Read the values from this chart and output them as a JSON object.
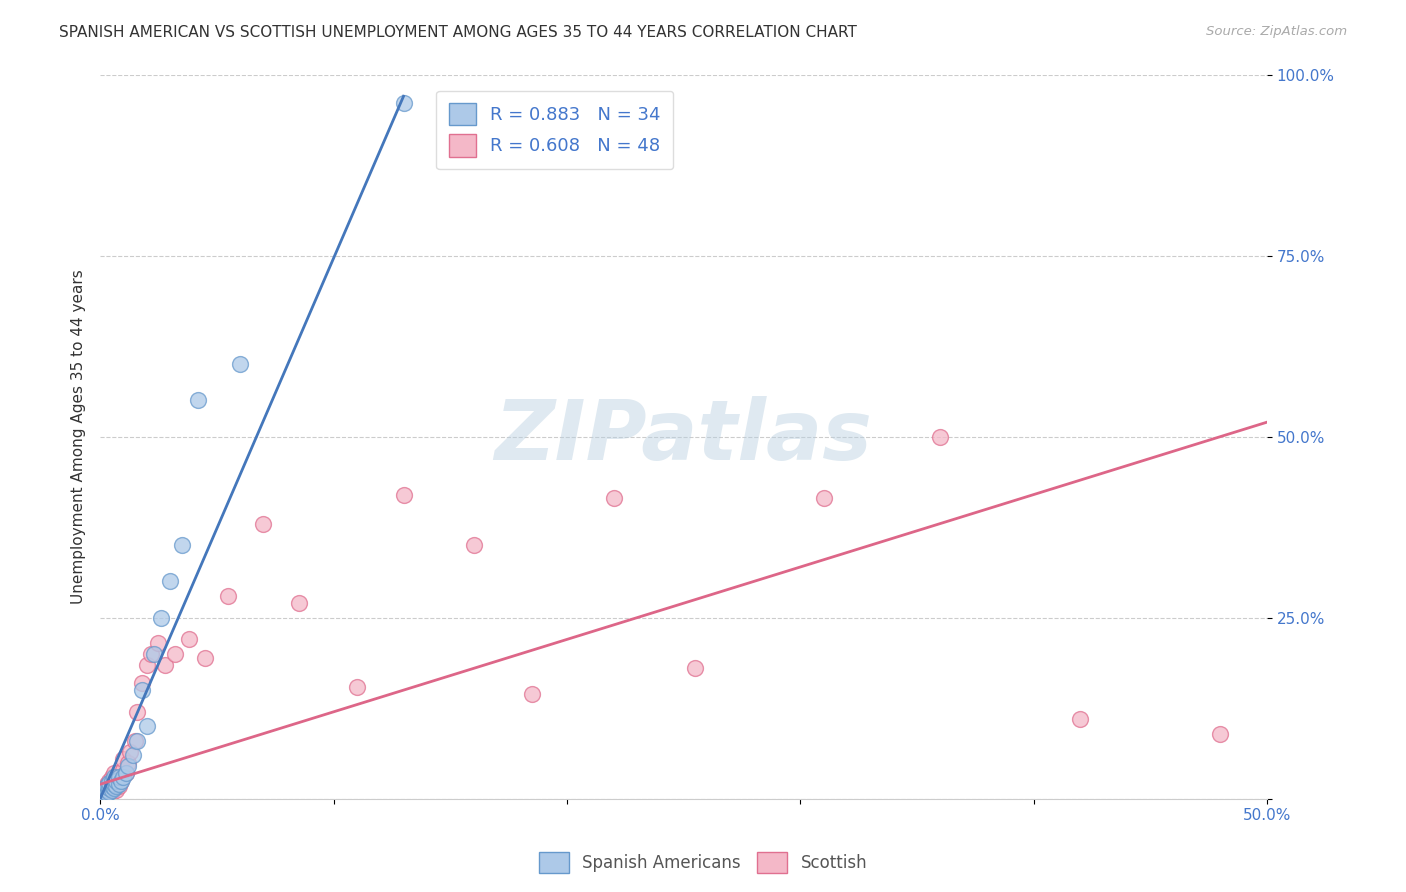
{
  "title": "SPANISH AMERICAN VS SCOTTISH UNEMPLOYMENT AMONG AGES 35 TO 44 YEARS CORRELATION CHART",
  "source": "Source: ZipAtlas.com",
  "ylabel": "Unemployment Among Ages 35 to 44 years",
  "xlim": [
    0,
    0.5
  ],
  "ylim": [
    0,
    1.0
  ],
  "xticks": [
    0.0,
    0.1,
    0.2,
    0.3,
    0.4,
    0.5
  ],
  "xtick_labels_show": [
    "0.0%",
    "",
    "",
    "",
    "",
    "50.0%"
  ],
  "yticks": [
    0.0,
    0.25,
    0.5,
    0.75,
    1.0
  ],
  "ytick_labels": [
    "",
    "25.0%",
    "50.0%",
    "75.0%",
    "100.0%"
  ],
  "background_color": "#ffffff",
  "grid_color": "#cccccc",
  "blue_scatter_color": "#adc9e8",
  "blue_edge_color": "#6699cc",
  "pink_scatter_color": "#f4b8c8",
  "pink_edge_color": "#e07090",
  "blue_line_color": "#4477bb",
  "pink_line_color": "#dd6688",
  "tick_color": "#4477cc",
  "label_color": "#333333",
  "r_blue": 0.883,
  "n_blue": 34,
  "r_pink": 0.608,
  "n_pink": 48,
  "blue_scatter_x": [
    0.001,
    0.002,
    0.002,
    0.003,
    0.003,
    0.003,
    0.004,
    0.004,
    0.004,
    0.005,
    0.005,
    0.005,
    0.006,
    0.006,
    0.006,
    0.007,
    0.007,
    0.008,
    0.008,
    0.009,
    0.01,
    0.011,
    0.012,
    0.014,
    0.016,
    0.018,
    0.02,
    0.023,
    0.026,
    0.03,
    0.035,
    0.042,
    0.06,
    0.13
  ],
  "blue_scatter_y": [
    0.005,
    0.01,
    0.015,
    0.008,
    0.012,
    0.018,
    0.01,
    0.015,
    0.022,
    0.012,
    0.018,
    0.025,
    0.015,
    0.02,
    0.03,
    0.018,
    0.025,
    0.02,
    0.03,
    0.025,
    0.03,
    0.035,
    0.045,
    0.06,
    0.08,
    0.15,
    0.1,
    0.2,
    0.25,
    0.3,
    0.35,
    0.55,
    0.6,
    0.96
  ],
  "pink_scatter_x": [
    0.001,
    0.002,
    0.002,
    0.003,
    0.003,
    0.003,
    0.004,
    0.004,
    0.004,
    0.005,
    0.005,
    0.005,
    0.006,
    0.006,
    0.006,
    0.007,
    0.007,
    0.008,
    0.008,
    0.009,
    0.01,
    0.01,
    0.011,
    0.012,
    0.013,
    0.015,
    0.016,
    0.018,
    0.02,
    0.022,
    0.025,
    0.028,
    0.032,
    0.038,
    0.045,
    0.055,
    0.07,
    0.085,
    0.11,
    0.13,
    0.16,
    0.185,
    0.22,
    0.255,
    0.31,
    0.36,
    0.42,
    0.48
  ],
  "pink_scatter_y": [
    0.01,
    0.008,
    0.015,
    0.005,
    0.012,
    0.02,
    0.008,
    0.015,
    0.025,
    0.01,
    0.018,
    0.03,
    0.015,
    0.022,
    0.035,
    0.012,
    0.025,
    0.018,
    0.03,
    0.025,
    0.04,
    0.055,
    0.035,
    0.05,
    0.065,
    0.08,
    0.12,
    0.16,
    0.185,
    0.2,
    0.215,
    0.185,
    0.2,
    0.22,
    0.195,
    0.28,
    0.38,
    0.27,
    0.155,
    0.42,
    0.35,
    0.145,
    0.415,
    0.18,
    0.415,
    0.5,
    0.11,
    0.09
  ],
  "blue_regline_x": [
    0.0,
    0.13
  ],
  "blue_regline_y": [
    0.0,
    0.97
  ],
  "pink_regline_x": [
    0.0,
    0.5
  ],
  "pink_regline_y": [
    0.02,
    0.52
  ],
  "watermark": "ZIPatlas"
}
